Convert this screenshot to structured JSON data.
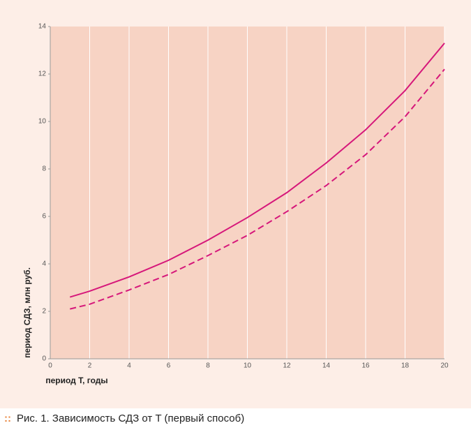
{
  "chart_data": {
    "type": "line",
    "x_label": "период T, годы",
    "y_label": "период СДЗ, млн руб.",
    "x": [
      1,
      2,
      4,
      6,
      8,
      10,
      12,
      14,
      16,
      18,
      20
    ],
    "series": [
      {
        "color": "#d6177a",
        "style": "solid",
        "values": [
          2.6,
          2.85,
          3.45,
          4.15,
          5.0,
          5.95,
          7.0,
          8.25,
          9.65,
          11.3,
          13.3
        ]
      },
      {
        "color": "#d6177a",
        "style": "dashed",
        "values": [
          2.1,
          2.3,
          2.9,
          3.55,
          4.35,
          5.2,
          6.2,
          7.3,
          8.6,
          10.2,
          12.2
        ]
      }
    ],
    "xlim": [
      0,
      20
    ],
    "xticks": [
      0,
      2,
      4,
      6,
      8,
      10,
      12,
      14,
      16,
      18,
      20
    ],
    "ylim": [
      0,
      14
    ],
    "yticks": [
      0,
      2,
      4,
      6,
      8,
      10,
      12,
      14
    ],
    "grid": "x"
  },
  "caption": {
    "marker": "::",
    "text": "Рис. 1. Зависимость СДЗ от T (первый способ)"
  }
}
